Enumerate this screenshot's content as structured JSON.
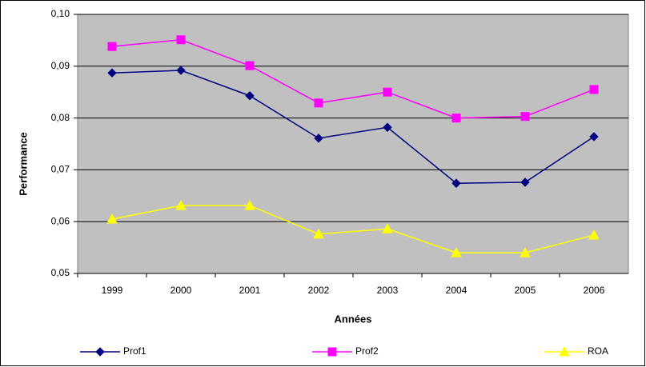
{
  "chart_data": {
    "type": "line",
    "x_label": "Années",
    "y_label": "Performance",
    "categories": [
      "1999",
      "2000",
      "2001",
      "2002",
      "2003",
      "2004",
      "2005",
      "2006"
    ],
    "series": [
      {
        "name": "Prof1",
        "color": "#000080",
        "marker": "diamond",
        "values": [
          0.0887,
          0.0892,
          0.0843,
          0.0761,
          0.0782,
          0.0674,
          0.0676,
          0.0764
        ]
      },
      {
        "name": "Prof2",
        "color": "#ff00ff",
        "marker": "square",
        "values": [
          0.0938,
          0.0951,
          0.0901,
          0.0829,
          0.085,
          0.08,
          0.0803,
          0.0855
        ]
      },
      {
        "name": "ROA",
        "color": "#ffff00",
        "marker": "triangle",
        "values": [
          0.0605,
          0.0631,
          0.0631,
          0.0576,
          0.0586,
          0.054,
          0.054,
          0.0574
        ]
      }
    ],
    "ylim": [
      0.05,
      0.1
    ],
    "yticks": [
      {
        "value": 0.05,
        "label": "0,05"
      },
      {
        "value": 0.06,
        "label": "0,06"
      },
      {
        "value": 0.07,
        "label": "0,07"
      },
      {
        "value": 0.08,
        "label": "0,08"
      },
      {
        "value": 0.09,
        "label": "0,09"
      },
      {
        "value": 0.1,
        "label": "0,10"
      }
    ],
    "grid": true,
    "legend": "bottom",
    "plot_background": "#c0c0c0"
  }
}
